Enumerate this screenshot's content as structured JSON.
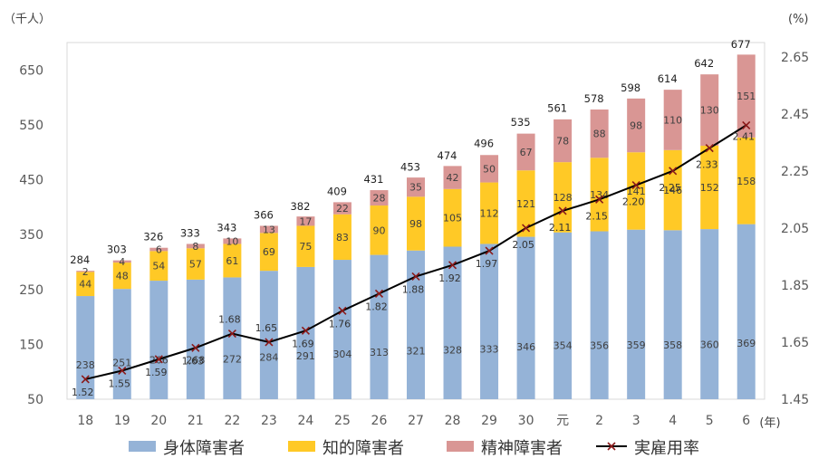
{
  "chart_data": {
    "type": "bar",
    "stacked": true,
    "categories": [
      "18",
      "19",
      "20",
      "21",
      "22",
      "23",
      "24",
      "25",
      "26",
      "27",
      "28",
      "29",
      "30",
      "元",
      "2",
      "3",
      "4",
      "5",
      "6"
    ],
    "series": [
      {
        "name": "身体障害者",
        "color": "#95B3D7",
        "values": [
          238,
          251,
          266,
          268,
          272,
          284,
          291,
          304,
          313,
          321,
          328,
          333,
          346,
          354,
          356,
          359,
          358,
          360,
          369
        ]
      },
      {
        "name": "知的障害者",
        "color": "#FFC926",
        "values": [
          44,
          48,
          54,
          57,
          61,
          69,
          75,
          83,
          90,
          98,
          105,
          112,
          121,
          128,
          134,
          141,
          146,
          152,
          158
        ]
      },
      {
        "name": "精神障害者",
        "color": "#D99694",
        "values": [
          2,
          4,
          6,
          8,
          10,
          13,
          17,
          22,
          28,
          35,
          42,
          50,
          67,
          78,
          88,
          98,
          110,
          130,
          151
        ]
      }
    ],
    "totals": [
      284,
      303,
      326,
      333,
      343,
      366,
      382,
      409,
      431,
      453,
      474,
      496,
      535,
      561,
      578,
      598,
      614,
      642,
      677
    ],
    "line": {
      "name": "実雇用率",
      "color": "#000000",
      "marker_color": "#8B1A1A",
      "values": [
        1.52,
        1.55,
        1.59,
        1.63,
        1.68,
        1.65,
        1.69,
        1.76,
        1.82,
        1.88,
        1.92,
        1.97,
        2.05,
        2.11,
        2.15,
        2.2,
        2.25,
        2.33,
        2.41
      ],
      "labels": [
        "1.52",
        "1.55",
        "1.59",
        "1.63",
        "1.68",
        "1.65",
        "1.69",
        "1.76",
        "1.82",
        "1.88",
        "1.92",
        "1.97",
        "2.05",
        "2.11",
        "2.15",
        "2.20",
        "2.25",
        "2.33",
        "2.41"
      ]
    },
    "y_left": {
      "label": "（千人）",
      "min": 50,
      "max": 700,
      "ticks": [
        50,
        150,
        250,
        350,
        450,
        550,
        650
      ]
    },
    "y_right": {
      "label": "(%)",
      "min": 1.45,
      "max": 2.7,
      "ticks": [
        "1.45",
        "1.65",
        "1.85",
        "2.05",
        "2.25",
        "2.45",
        "2.65"
      ]
    },
    "x_unit": "(年)",
    "legend_position": "bottom"
  }
}
